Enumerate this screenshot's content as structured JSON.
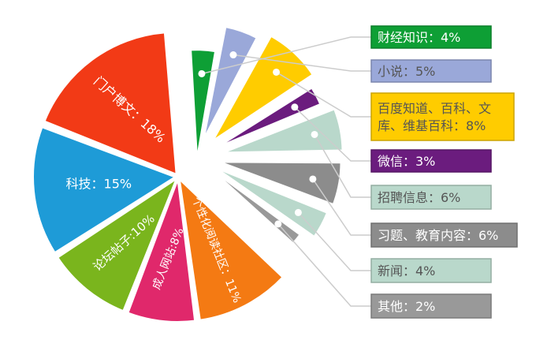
{
  "chart_data": {
    "type": "pie",
    "title": "",
    "slices": [
      {
        "name": "财经知识",
        "value": 4,
        "label": "财经知识：4%",
        "color": "#0e9f35"
      },
      {
        "name": "小说",
        "value": 5,
        "label": "小说：5%",
        "color": "#9aa8d9"
      },
      {
        "name": "百度知道、百科、文库、维基百科",
        "value": 8,
        "label": "百度知道、百科、文库、维基百科：8%",
        "label_lines": [
          "百度知道、百科、文",
          "库、维基百科：8%"
        ],
        "color": "#ffcc00"
      },
      {
        "name": "微信",
        "value": 3,
        "label": "微信：3%",
        "color": "#6b1c7e"
      },
      {
        "name": "招聘信息",
        "value": 6,
        "label": "招聘信息：6%",
        "color": "#b9d8cb"
      },
      {
        "name": "习题、教育内容",
        "value": 6,
        "label": "习题、教育内容：6%",
        "color": "#8c8c8c"
      },
      {
        "name": "新闻",
        "value": 4,
        "label": "新闻：4%",
        "color": "#b9d8cb"
      },
      {
        "name": "其他",
        "value": 2,
        "label": "其他：2%",
        "color": "#999999"
      },
      {
        "name": "个性化阅读社区",
        "value": 11,
        "label": "个性化阅读社区：11%",
        "color": "#f47a13"
      },
      {
        "name": "成人网站",
        "value": 8,
        "label": "成人网站:8%",
        "color": "#e0286b"
      },
      {
        "name": "论坛帖子",
        "value": 10,
        "label": "论坛帖子:10%",
        "color": "#7ab51d"
      },
      {
        "name": "科技",
        "value": 15,
        "label": "科技：15%",
        "color": "#1e9bd7"
      },
      {
        "name": "门户博文",
        "value": 18,
        "label": "门户博文：18%",
        "color": "#f23a16"
      }
    ],
    "legend_placement": "right"
  }
}
